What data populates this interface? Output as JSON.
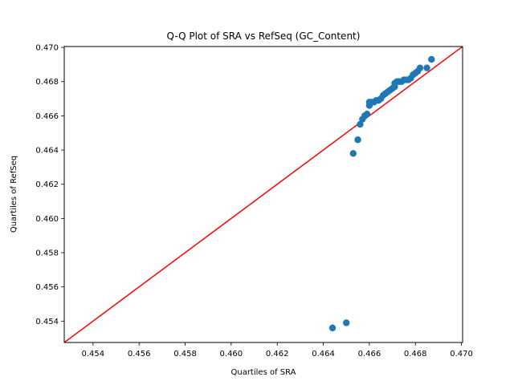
{
  "chart_data": {
    "type": "scatter",
    "title": "Q-Q Plot of SRA vs RefSeq (GC_Content)",
    "xlabel": "Quartiles of SRA",
    "ylabel": "Quartiles of RefSeq",
    "xlim": [
      0.45275,
      0.47005
    ],
    "ylim": [
      0.45275,
      0.47005
    ],
    "xticks": [
      0.454,
      0.456,
      0.458,
      0.46,
      0.462,
      0.464,
      0.466,
      0.468,
      0.47
    ],
    "xtick_labels": [
      "0.454",
      "0.456",
      "0.458",
      "0.460",
      "0.462",
      "0.464",
      "0.466",
      "0.468",
      "0.470"
    ],
    "yticks": [
      0.454,
      0.456,
      0.458,
      0.46,
      0.462,
      0.464,
      0.466,
      0.468,
      0.47
    ],
    "ytick_labels": [
      "0.454",
      "0.456",
      "0.458",
      "0.460",
      "0.462",
      "0.464",
      "0.466",
      "0.468",
      "0.470"
    ],
    "grid": false,
    "reference_line": {
      "type": "y=x",
      "color": "#ff0000"
    },
    "marker_color": "#1f77b4",
    "series": [
      {
        "x": [
          0.4644,
          0.465,
          0.4653,
          0.4655,
          0.4656,
          0.4657,
          0.4658,
          0.4659,
          0.466,
          0.466,
          0.4661,
          0.4662,
          0.4663,
          0.4664,
          0.4665,
          0.4666,
          0.4667,
          0.4668,
          0.4669,
          0.467,
          0.4671,
          0.4671,
          0.4672,
          0.4673,
          0.4674,
          0.4675,
          0.4676,
          0.4677,
          0.4678,
          0.4679,
          0.468,
          0.4681,
          0.4682,
          0.4685,
          0.4687
        ],
        "y": [
          0.4536,
          0.4539,
          0.4638,
          0.4646,
          0.4655,
          0.4658,
          0.466,
          0.4661,
          0.4666,
          0.4668,
          0.4668,
          0.4668,
          0.4669,
          0.4669,
          0.467,
          0.4672,
          0.4673,
          0.4674,
          0.4675,
          0.4676,
          0.4677,
          0.4679,
          0.468,
          0.468,
          0.468,
          0.4681,
          0.4681,
          0.4681,
          0.4682,
          0.4684,
          0.4685,
          0.4686,
          0.4688,
          0.4688,
          0.4693
        ]
      }
    ]
  }
}
